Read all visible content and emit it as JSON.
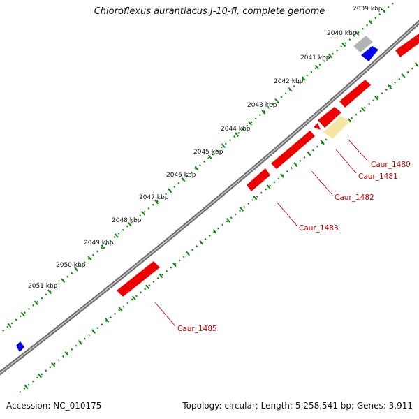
{
  "title": "Chloroflexus aurantiacus J-10-fl, complete genome",
  "footer": {
    "accession": "Accession: NC_010175",
    "summary": "Topology: circular; Length: 5,258,541 bp; Genes: 3,911"
  },
  "colors": {
    "forward_strand": "#ee0000",
    "other_feature_gray": "#b0b0b0",
    "other_feature_blue": "#0000ee",
    "highlight_feature": "#f3e6a3",
    "backbone": "#808080",
    "tick_marks": "#118811",
    "gene_label": "#cc0000"
  },
  "kbp_labels": [
    "2039 kbp",
    "2040 kbp",
    "2041 kbp",
    "2042 kbp",
    "2043 kbp",
    "2044 kbp",
    "2045 kbp",
    "2046 kbp",
    "2047 kbp",
    "2048 kbp",
    "2049 kbp",
    "2050 kbp",
    "2051 kbp"
  ],
  "gene_labels": [
    "Caur_1480",
    "Caur_1481",
    "Caur_1482",
    "Caur_1483",
    "Caur_1485"
  ]
}
